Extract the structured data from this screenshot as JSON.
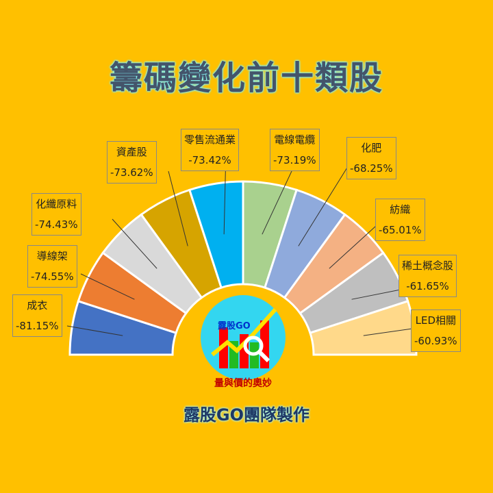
{
  "title": "籌碼變化前十類股",
  "credit": "露股GO團隊製作",
  "logo": {
    "brand": "露股GO",
    "slogan": "量與價的奧妙"
  },
  "colors": {
    "background": "#FFC000",
    "title": "#44546A"
  },
  "chart_data": {
    "type": "pie",
    "style": "half-donut",
    "categories": [
      "成衣",
      "導線架",
      "化纖原料",
      "資產股",
      "零售流通業",
      "電線電纜",
      "化肥",
      "紡織",
      "稀土概念股",
      "LED相關"
    ],
    "values": [
      "-81.15%",
      "-74.55%",
      "-74.43%",
      "-73.62%",
      "-73.42%",
      "-73.19%",
      "-68.25%",
      "-65.01%",
      "-61.65%",
      "-60.93%"
    ],
    "colors": [
      "#4472C4",
      "#ED7D31",
      "#D9D9D9",
      "#D6A400",
      "#00B0F0",
      "#A9D18E",
      "#8FAADC",
      "#F4B183",
      "#BFBFBF",
      "#FFD98A"
    ]
  }
}
